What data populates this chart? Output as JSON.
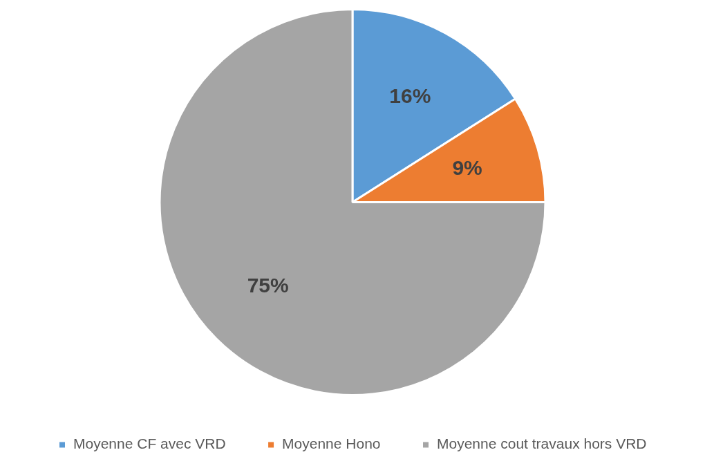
{
  "chart_data": {
    "type": "pie",
    "categories": [
      "Moyenne CF avec VRD",
      "Moyenne Hono",
      "Moyenne cout travaux hors VRD"
    ],
    "values": [
      16,
      9,
      75
    ],
    "colors": [
      "#5b9bd5",
      "#ed7d31",
      "#a5a5a5"
    ],
    "value_labels": [
      "16%",
      "9%",
      "75%"
    ],
    "legend": "bottom"
  }
}
